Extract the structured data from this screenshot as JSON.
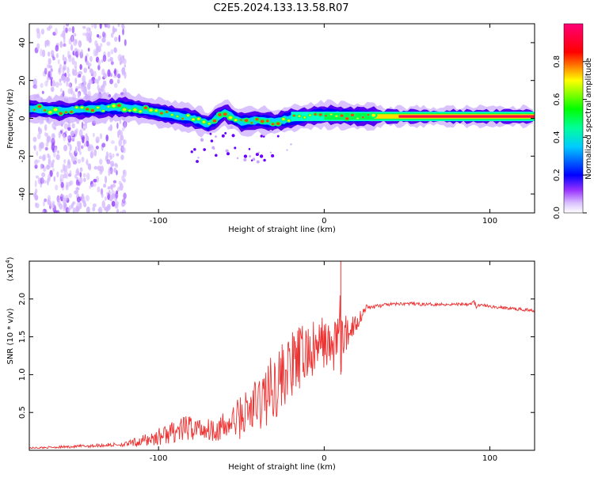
{
  "title": "C2E5.2024.133.13.58.R07",
  "chart_data": [
    {
      "type": "heatmap",
      "xlabel": "Height of straight line (km)",
      "ylabel": "Frequency (Hz)",
      "xlim": [
        -178,
        127
      ],
      "ylim": [
        -50,
        50
      ],
      "x_ticks": [
        -100,
        0,
        100
      ],
      "y_ticks": [
        -40,
        -20,
        0,
        20,
        40
      ],
      "colorbar": {
        "label": "Normalized spectral amplitude",
        "range": [
          0,
          1
        ],
        "ticks": [
          0.0,
          0.2,
          0.4,
          0.6,
          0.8
        ],
        "colors": [
          "#ffffff",
          "#c8a0ff",
          "#6600ff",
          "#0000ff",
          "#00ffff",
          "#00ff00",
          "#ffff00",
          "#ff0000",
          "#ff0080"
        ]
      },
      "ridge": {
        "x": [
          -175,
          -160,
          -140,
          -120,
          -100,
          -80,
          -70,
          -60,
          -50,
          -40,
          -30,
          -20,
          -10,
          0,
          20,
          40,
          60,
          80,
          100,
          127
        ],
        "y": [
          5,
          4,
          5,
          6,
          3,
          0,
          -3,
          3,
          -2,
          -1,
          -2,
          0,
          1,
          2,
          1,
          1,
          1,
          1,
          1,
          1
        ]
      }
    },
    {
      "type": "line",
      "xlabel": "Height of straight line (km)",
      "ylabel": "SNR (10 * v/v)",
      "y_multiplier": "(x10",
      "y_multiplier_exp": "4",
      "xlim": [
        -178,
        127
      ],
      "ylim": [
        0,
        2.5
      ],
      "x_ticks": [
        -100,
        0,
        100
      ],
      "y_ticks": [
        0.5,
        1.0,
        1.5,
        2.0
      ],
      "color": "#ee3333",
      "series": [
        {
          "x": [
            -178,
            -150,
            -120,
            -110,
            -100,
            -90,
            -80,
            -70,
            -60,
            -50,
            -40,
            -35,
            -30,
            -25,
            -20,
            -15,
            -10,
            -5,
            0,
            5,
            8,
            10,
            12,
            15,
            20,
            25,
            30,
            40,
            50,
            60,
            70,
            80,
            88,
            90,
            92,
            95,
            100,
            110,
            120,
            127
          ],
          "values": [
            0.03,
            0.05,
            0.08,
            0.12,
            0.18,
            0.25,
            0.3,
            0.28,
            0.3,
            0.45,
            0.6,
            0.75,
            0.85,
            1.0,
            1.1,
            1.2,
            1.3,
            1.3,
            1.45,
            1.3,
            1.6,
            1.5,
            1.4,
            1.6,
            1.7,
            1.88,
            1.9,
            1.93,
            1.94,
            1.93,
            1.93,
            1.93,
            1.94,
            1.97,
            1.9,
            1.92,
            1.9,
            1.88,
            1.86,
            1.85
          ],
          "amplitude": [
            0.01,
            0.02,
            0.03,
            0.08,
            0.12,
            0.15,
            0.18,
            0.15,
            0.2,
            0.3,
            0.4,
            0.45,
            0.45,
            0.45,
            0.45,
            0.45,
            0.4,
            0.4,
            0.35,
            0.3,
            0.5,
            0.6,
            0.4,
            0.2,
            0.12,
            0.05,
            0.03,
            0.02,
            0.02,
            0.02,
            0.02,
            0.02,
            0.03,
            0.05,
            0.03,
            0.02,
            0.02,
            0.02,
            0.02,
            0.02
          ]
        }
      ]
    }
  ]
}
